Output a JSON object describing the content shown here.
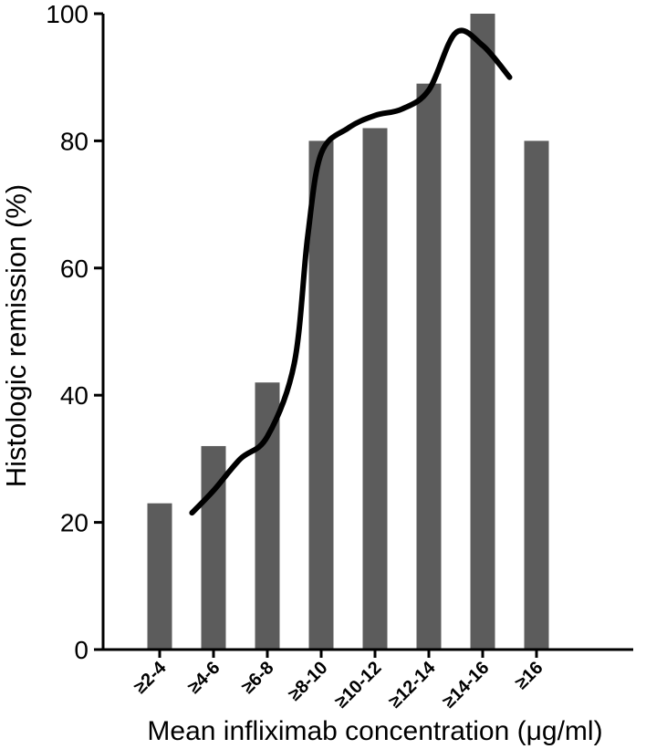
{
  "chart_data": {
    "type": "bar",
    "xlabel": "Mean infliximab concentration (μg/ml)",
    "ylabel": "Histologic remission (%)",
    "ylim": [
      0,
      100
    ],
    "yticks": [
      0,
      20,
      40,
      60,
      80,
      100
    ],
    "grid": false,
    "legend": "none",
    "categories": [
      "≥2-4",
      "≥4-6",
      "≥6-8",
      "≥8-10",
      "≥10-12",
      "≥12-14",
      "≥14-16",
      "≥16"
    ],
    "values": [
      23,
      32,
      42,
      80,
      82,
      89,
      100,
      80
    ],
    "bar_color": "#5c5c5c",
    "trend_line": {
      "color": "#000000",
      "points": [
        {
          "x": 0.6,
          "y": 21.5
        },
        {
          "x": 1.0,
          "y": 25
        },
        {
          "x": 1.5,
          "y": 30
        },
        {
          "x": 2.0,
          "y": 33.5
        },
        {
          "x": 2.5,
          "y": 45
        },
        {
          "x": 2.75,
          "y": 65
        },
        {
          "x": 3.0,
          "y": 78
        },
        {
          "x": 3.5,
          "y": 82
        },
        {
          "x": 4.0,
          "y": 84
        },
        {
          "x": 4.5,
          "y": 85
        },
        {
          "x": 5.0,
          "y": 88
        },
        {
          "x": 5.5,
          "y": 97
        },
        {
          "x": 6.0,
          "y": 95
        },
        {
          "x": 6.5,
          "y": 90
        }
      ]
    }
  }
}
